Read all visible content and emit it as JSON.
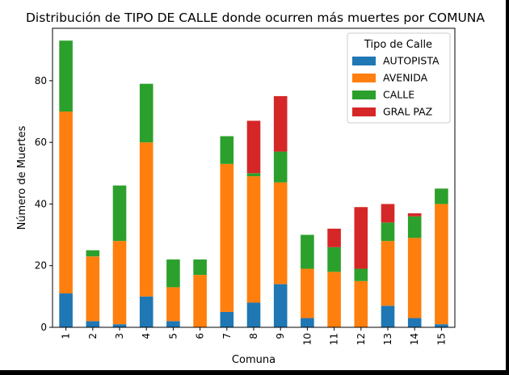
{
  "chart_data": {
    "type": "bar",
    "stacked": true,
    "title": "Distribución de TIPO DE CALLE donde ocurren más muertes por COMUNA",
    "xlabel": "Comuna",
    "ylabel": "Número de Muertes",
    "categories": [
      "1",
      "2",
      "3",
      "4",
      "5",
      "6",
      "7",
      "8",
      "9",
      "10",
      "11",
      "12",
      "13",
      "14",
      "15"
    ],
    "ylim": [
      0,
      97
    ],
    "yticks": [
      0,
      20,
      40,
      60,
      80
    ],
    "grid": false,
    "legend": {
      "title": "Tipo de Calle",
      "placement": "top-right"
    },
    "series": [
      {
        "name": "AUTOPISTA",
        "color": "#1f77b4",
        "values": [
          11,
          2,
          1,
          10,
          2,
          0,
          5,
          8,
          14,
          3,
          0,
          0,
          7,
          3,
          1
        ]
      },
      {
        "name": "AVENIDA",
        "color": "#ff7f0e",
        "values": [
          59,
          21,
          27,
          50,
          11,
          17,
          48,
          41,
          33,
          16,
          18,
          15,
          21,
          26,
          39
        ]
      },
      {
        "name": "CALLE",
        "color": "#2ca02c",
        "values": [
          23,
          2,
          18,
          19,
          9,
          5,
          9,
          1,
          10,
          11,
          8,
          4,
          6,
          7,
          5
        ]
      },
      {
        "name": "GRAL PAZ",
        "color": "#d62728",
        "values": [
          0,
          0,
          0,
          0,
          0,
          0,
          0,
          17,
          18,
          0,
          6,
          20,
          6,
          1,
          0
        ]
      }
    ]
  }
}
